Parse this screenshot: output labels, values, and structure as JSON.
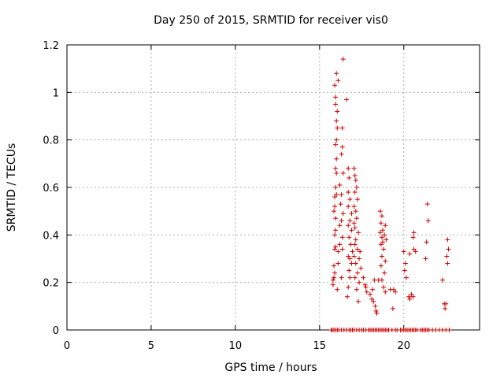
{
  "chart_data": {
    "type": "scatter",
    "title": "Day 250 of 2015, SRMTID for receiver vis0",
    "xlabel": "GPS time / hours",
    "ylabel": "SRMTID / TECUs",
    "xlim": [
      0,
      24.5
    ],
    "ylim": [
      0,
      1.2
    ],
    "xticks": [
      0,
      5,
      10,
      15,
      20
    ],
    "yticks": [
      0,
      0.2,
      0.4,
      0.6,
      0.8,
      1,
      1.2
    ],
    "xtick_labels": [
      "0",
      "5",
      "10",
      "15",
      "20"
    ],
    "ytick_labels": [
      "0",
      "0.2",
      "0.4",
      "0.6",
      "0.8",
      "1",
      "1.2"
    ],
    "grid": true,
    "marker": "+",
    "color": "#cc0000",
    "series": [
      {
        "name": "vis0",
        "points": [
          [
            15.8,
            0.19
          ],
          [
            15.8,
            0.21
          ],
          [
            15.85,
            0.22
          ],
          [
            15.9,
            0.24
          ],
          [
            15.85,
            0.27
          ],
          [
            15.9,
            0.34
          ],
          [
            15.95,
            0.35
          ],
          [
            15.9,
            0.4
          ],
          [
            15.95,
            0.42
          ],
          [
            15.85,
            0.5
          ],
          [
            15.9,
            0.52
          ],
          [
            15.95,
            0.47
          ],
          [
            15.9,
            0.56
          ],
          [
            16.0,
            0.57
          ],
          [
            15.95,
            0.6
          ],
          [
            16.0,
            0.66
          ],
          [
            15.95,
            0.68
          ],
          [
            16.0,
            0.72
          ],
          [
            15.95,
            0.78
          ],
          [
            16.0,
            0.8
          ],
          [
            16.05,
            0.85
          ],
          [
            16.0,
            0.88
          ],
          [
            15.95,
            0.95
          ],
          [
            15.95,
            0.98
          ],
          [
            16.1,
            1.05
          ],
          [
            16.0,
            1.08
          ],
          [
            15.9,
            1.03
          ],
          [
            16.05,
            0.92
          ],
          [
            16.4,
            1.14
          ],
          [
            16.35,
            0.85
          ],
          [
            16.6,
            0.97
          ],
          [
            16.35,
            0.77
          ],
          [
            16.3,
            0.74
          ],
          [
            16.4,
            0.66
          ],
          [
            16.2,
            0.61
          ],
          [
            16.3,
            0.57
          ],
          [
            16.25,
            0.53
          ],
          [
            16.4,
            0.49
          ],
          [
            16.3,
            0.46
          ],
          [
            16.2,
            0.44
          ],
          [
            16.35,
            0.39
          ],
          [
            16.2,
            0.36
          ],
          [
            16.35,
            0.34
          ],
          [
            16.1,
            0.33
          ],
          [
            16.1,
            0.28
          ],
          [
            16.3,
            0.22
          ],
          [
            16.05,
            0.17
          ],
          [
            16.7,
            0.68
          ],
          [
            16.75,
            0.64
          ],
          [
            16.7,
            0.58
          ],
          [
            16.8,
            0.55
          ],
          [
            16.7,
            0.52
          ],
          [
            16.9,
            0.49
          ],
          [
            16.8,
            0.46
          ],
          [
            16.7,
            0.44
          ],
          [
            16.9,
            0.42
          ],
          [
            16.75,
            0.39
          ],
          [
            16.85,
            0.36
          ],
          [
            16.95,
            0.33
          ],
          [
            16.7,
            0.31
          ],
          [
            16.8,
            0.3
          ],
          [
            16.9,
            0.28
          ],
          [
            16.75,
            0.25
          ],
          [
            16.8,
            0.22
          ],
          [
            16.7,
            0.18
          ],
          [
            16.65,
            0.14
          ],
          [
            17.05,
            0.68
          ],
          [
            17.1,
            0.65
          ],
          [
            17.15,
            0.63
          ],
          [
            17.2,
            0.6
          ],
          [
            17.1,
            0.58
          ],
          [
            17.25,
            0.55
          ],
          [
            17.05,
            0.52
          ],
          [
            17.15,
            0.5
          ],
          [
            17.2,
            0.47
          ],
          [
            17.05,
            0.45
          ],
          [
            17.1,
            0.43
          ],
          [
            17.3,
            0.41
          ],
          [
            17.15,
            0.38
          ],
          [
            17.1,
            0.36
          ],
          [
            17.25,
            0.34
          ],
          [
            17.4,
            0.33
          ],
          [
            17.05,
            0.31
          ],
          [
            17.35,
            0.3
          ],
          [
            17.15,
            0.28
          ],
          [
            17.45,
            0.26
          ],
          [
            17.25,
            0.24
          ],
          [
            17.1,
            0.22
          ],
          [
            17.35,
            0.2
          ],
          [
            17.2,
            0.17
          ],
          [
            17.3,
            0.12
          ],
          [
            17.6,
            0.22
          ],
          [
            17.7,
            0.19
          ],
          [
            17.75,
            0.18
          ],
          [
            17.8,
            0.16
          ],
          [
            18.0,
            0.15
          ],
          [
            18.1,
            0.13
          ],
          [
            18.2,
            0.12
          ],
          [
            18.3,
            0.1
          ],
          [
            18.35,
            0.08
          ],
          [
            18.4,
            0.07
          ],
          [
            18.25,
            0.21
          ],
          [
            18.5,
            0.21
          ],
          [
            18.15,
            0.17
          ],
          [
            18.6,
            0.5
          ],
          [
            18.7,
            0.48
          ],
          [
            18.65,
            0.45
          ],
          [
            18.9,
            0.44
          ],
          [
            18.75,
            0.42
          ],
          [
            18.6,
            0.41
          ],
          [
            18.85,
            0.4
          ],
          [
            18.7,
            0.39
          ],
          [
            18.95,
            0.38
          ],
          [
            18.75,
            0.37
          ],
          [
            18.65,
            0.36
          ],
          [
            18.8,
            0.34
          ],
          [
            18.7,
            0.31
          ],
          [
            18.9,
            0.29
          ],
          [
            18.65,
            0.27
          ],
          [
            18.85,
            0.24
          ],
          [
            18.7,
            0.21
          ],
          [
            18.8,
            0.18
          ],
          [
            18.9,
            0.16
          ],
          [
            19.2,
            0.17
          ],
          [
            19.4,
            0.17
          ],
          [
            19.5,
            0.16
          ],
          [
            19.35,
            0.09
          ],
          [
            20.0,
            0.33
          ],
          [
            20.1,
            0.28
          ],
          [
            20.05,
            0.25
          ],
          [
            20.15,
            0.22
          ],
          [
            20.3,
            0.14
          ],
          [
            20.35,
            0.13
          ],
          [
            20.45,
            0.15
          ],
          [
            20.55,
            0.14
          ],
          [
            20.6,
            0.34
          ],
          [
            20.7,
            0.33
          ],
          [
            20.55,
            0.39
          ],
          [
            20.6,
            0.41
          ],
          [
            20.35,
            0.32
          ],
          [
            21.4,
            0.53
          ],
          [
            21.45,
            0.46
          ],
          [
            21.35,
            0.37
          ],
          [
            21.3,
            0.3
          ],
          [
            22.3,
            0.21
          ],
          [
            22.4,
            0.11
          ],
          [
            22.5,
            0.11
          ],
          [
            22.45,
            0.09
          ],
          [
            22.6,
            0.38
          ],
          [
            22.65,
            0.34
          ],
          [
            22.55,
            0.31
          ],
          [
            22.6,
            0.28
          ],
          [
            15.7,
            0
          ],
          [
            15.75,
            0
          ],
          [
            15.85,
            0
          ],
          [
            15.95,
            0
          ],
          [
            16.05,
            0
          ],
          [
            16.15,
            0
          ],
          [
            16.3,
            0
          ],
          [
            16.45,
            0
          ],
          [
            16.6,
            0
          ],
          [
            16.75,
            0
          ],
          [
            16.85,
            0
          ],
          [
            16.95,
            0
          ],
          [
            17.05,
            0
          ],
          [
            17.2,
            0
          ],
          [
            17.35,
            0
          ],
          [
            17.5,
            0
          ],
          [
            17.6,
            0
          ],
          [
            17.75,
            0
          ],
          [
            17.9,
            0
          ],
          [
            18.0,
            0
          ],
          [
            18.1,
            0
          ],
          [
            18.2,
            0
          ],
          [
            18.3,
            0
          ],
          [
            18.4,
            0
          ],
          [
            18.5,
            0
          ],
          [
            18.6,
            0
          ],
          [
            18.7,
            0
          ],
          [
            18.8,
            0
          ],
          [
            18.9,
            0
          ],
          [
            19.0,
            0
          ],
          [
            19.1,
            0
          ],
          [
            19.3,
            0
          ],
          [
            19.5,
            0
          ],
          [
            19.6,
            0
          ],
          [
            19.8,
            0
          ],
          [
            19.9,
            0
          ],
          [
            20.0,
            0
          ],
          [
            20.1,
            0
          ],
          [
            20.2,
            0
          ],
          [
            20.3,
            0
          ],
          [
            20.4,
            0
          ],
          [
            20.5,
            0
          ],
          [
            20.6,
            0
          ],
          [
            20.7,
            0
          ],
          [
            20.8,
            0
          ],
          [
            21.0,
            0
          ],
          [
            21.1,
            0
          ],
          [
            21.2,
            0
          ],
          [
            21.3,
            0
          ],
          [
            21.4,
            0
          ],
          [
            21.5,
            0
          ],
          [
            21.7,
            0
          ],
          [
            21.9,
            0
          ],
          [
            22.1,
            0
          ],
          [
            22.3,
            0
          ],
          [
            22.5,
            0
          ],
          [
            22.7,
            0
          ]
        ]
      }
    ]
  }
}
